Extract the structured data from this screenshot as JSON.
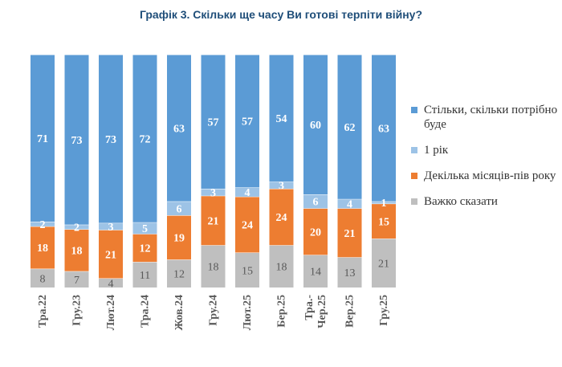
{
  "chart_data": {
    "type": "bar",
    "stacked": true,
    "percent": true,
    "title": "Графік 3. Скільки ще часу Ви готові терпіти війну?",
    "categories": [
      "Тра.22",
      "Гру.23",
      "Лют.24",
      "Тра.24",
      "Жов.24",
      "Гру.24",
      "Лют.25",
      "Бер.25",
      "Тра.-Чер.25",
      "Вер.25",
      "Гру.25"
    ],
    "series": [
      {
        "name": "Важко сказати",
        "color": "#bfbfbf",
        "values": [
          8,
          7,
          4,
          11,
          12,
          18,
          15,
          18,
          14,
          13,
          21
        ]
      },
      {
        "name": "Декілька місяців-пів року",
        "color": "#ed7d31",
        "values": [
          18,
          18,
          21,
          12,
          19,
          21,
          24,
          24,
          20,
          21,
          15
        ]
      },
      {
        "name": "1 рік",
        "color": "#9dc3e6",
        "values": [
          2,
          2,
          3,
          5,
          6,
          3,
          4,
          3,
          6,
          4,
          1
        ]
      },
      {
        "name": "Стільки, скільки потрібно буде",
        "color": "#5b9bd5",
        "values": [
          71,
          73,
          73,
          72,
          63,
          57,
          57,
          54,
          60,
          62,
          63
        ]
      }
    ],
    "legend_position": "right",
    "legend_order": [
      "Стільки, скільки потрібно буде",
      "1 рік",
      "Декілька місяців-пів року",
      "Важко сказати"
    ],
    "grid": false
  }
}
